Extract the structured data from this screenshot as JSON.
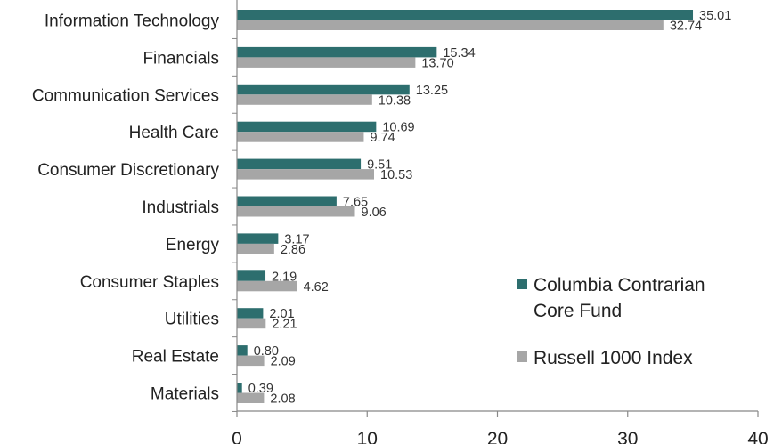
{
  "chart_data": {
    "type": "bar",
    "orientation": "horizontal",
    "categories": [
      "Information Technology",
      "Financials",
      "Communication Services",
      "Health Care",
      "Consumer Discretionary",
      "Industrials",
      "Energy",
      "Consumer Staples",
      "Utilities",
      "Real Estate",
      "Materials"
    ],
    "series": [
      {
        "name": "Columbia Contrarian Core Fund",
        "color": "#2d6e6e",
        "values": [
          35.01,
          15.34,
          13.25,
          10.69,
          9.51,
          7.65,
          3.17,
          2.19,
          2.01,
          0.8,
          0.39
        ],
        "labels": [
          "35.01",
          "15.34",
          "13.25",
          "10.69",
          "9.51",
          "7.65",
          "3.17",
          "2.19",
          "2.01",
          "0.80",
          "0.39"
        ]
      },
      {
        "name": "Russell 1000 Index",
        "color": "#a6a6a6",
        "values": [
          32.74,
          13.7,
          10.38,
          9.74,
          10.53,
          9.06,
          2.86,
          4.62,
          2.21,
          2.09,
          2.08
        ],
        "labels": [
          "32.74",
          "13.70",
          "10.38",
          "9.74",
          "10.53",
          "9.06",
          "2.86",
          "4.62",
          "2.21",
          "2.09",
          "2.08"
        ]
      }
    ],
    "xlim": [
      0,
      40
    ],
    "xticks": [
      "0",
      "10",
      "20",
      "30",
      "40"
    ],
    "legend": {
      "position": "lower-right",
      "entries": [
        {
          "lines": [
            "Columbia Contrarian",
            "Core Fund"
          ],
          "color": "#2d6e6e"
        },
        {
          "lines": [
            "Russell 1000 Index"
          ],
          "color": "#a6a6a6"
        }
      ]
    },
    "grid": false
  }
}
